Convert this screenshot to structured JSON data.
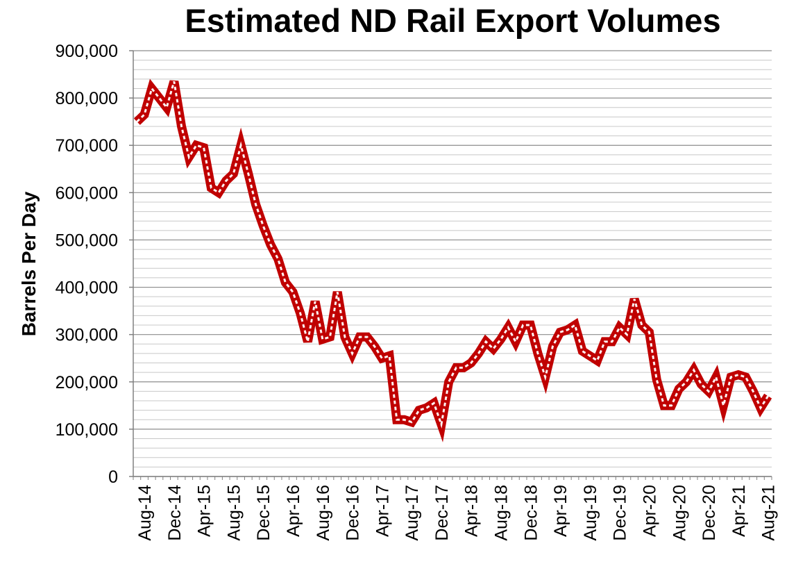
{
  "chart_data": {
    "type": "line",
    "title": "Estimated ND Rail Export Volumes",
    "xlabel": "",
    "ylabel": "Barrels Per Day",
    "ylim": [
      0,
      900000
    ],
    "y_ticks": [
      "0",
      "100,000",
      "200,000",
      "300,000",
      "400,000",
      "500,000",
      "600,000",
      "700,000",
      "800,000",
      "900,000"
    ],
    "x_tick_labels": [
      "Aug-14",
      "Dec-14",
      "Apr-15",
      "Aug-15",
      "Dec-15",
      "Apr-16",
      "Aug-16",
      "Dec-16",
      "Apr-17",
      "Aug-17",
      "Dec-17",
      "Apr-18",
      "Aug-18",
      "Dec-18",
      "Apr-19",
      "Aug-19",
      "Dec-19",
      "Apr-20",
      "Aug-20",
      "Dec-20",
      "Apr-21",
      "Aug-21"
    ],
    "grid": true,
    "line_color": "#c00000",
    "x": [
      "Jul-14",
      "Aug-14",
      "Sep-14",
      "Oct-14",
      "Nov-14",
      "Dec-14",
      "Jan-15",
      "Feb-15",
      "Mar-15",
      "Apr-15",
      "May-15",
      "Jun-15",
      "Jul-15",
      "Aug-15",
      "Sep-15",
      "Oct-15",
      "Nov-15",
      "Dec-15",
      "Jan-16",
      "Feb-16",
      "Mar-16",
      "Apr-16",
      "May-16",
      "Jun-16",
      "Jul-16",
      "Aug-16",
      "Sep-16",
      "Oct-16",
      "Nov-16",
      "Dec-16",
      "Jan-17",
      "Feb-17",
      "Mar-17",
      "Apr-17",
      "May-17",
      "Jun-17",
      "Jul-17",
      "Aug-17",
      "Sep-17",
      "Oct-17",
      "Nov-17",
      "Dec-17",
      "Jan-18",
      "Feb-18",
      "Mar-18",
      "Apr-18",
      "May-18",
      "Jun-18",
      "Jul-18",
      "Aug-18",
      "Sep-18",
      "Oct-18",
      "Nov-18",
      "Dec-18",
      "Jan-19",
      "Feb-19",
      "Mar-19",
      "Apr-19",
      "May-19",
      "Jun-19",
      "Jul-19",
      "Aug-19",
      "Sep-19",
      "Oct-19",
      "Nov-19",
      "Dec-19",
      "Jan-20",
      "Feb-20",
      "Mar-20",
      "Apr-20",
      "May-20",
      "Jun-20",
      "Jul-20",
      "Aug-20",
      "Sep-20",
      "Oct-20",
      "Nov-20",
      "Dec-20",
      "Jan-21",
      "Feb-21",
      "Mar-21",
      "Apr-21",
      "May-21",
      "Jun-21",
      "Jul-21",
      "Aug-21"
    ],
    "series": [
      {
        "values": [
          750000,
          765000,
          820000,
          800000,
          780000,
          835000,
          740000,
          675000,
          700000,
          695000,
          610000,
          600000,
          625000,
          640000,
          700000,
          640000,
          575000,
          530000,
          490000,
          460000,
          410000,
          390000,
          345000,
          285000,
          370000,
          290000,
          295000,
          390000,
          295000,
          260000,
          295000,
          295000,
          275000,
          250000,
          255000,
          120000,
          120000,
          115000,
          140000,
          145000,
          155000,
          110000,
          200000,
          230000,
          230000,
          240000,
          260000,
          285000,
          270000,
          290000,
          315000,
          285000,
          320000,
          320000,
          260000,
          210000,
          275000,
          305000,
          310000,
          320000,
          265000,
          255000,
          245000,
          285000,
          285000,
          315000,
          300000,
          375000,
          320000,
          305000,
          205000,
          150000,
          150000,
          185000,
          200000,
          225000,
          195000,
          180000,
          210000,
          150000,
          210000,
          215000,
          210000,
          180000,
          145000,
          170000
        ]
      }
    ]
  }
}
